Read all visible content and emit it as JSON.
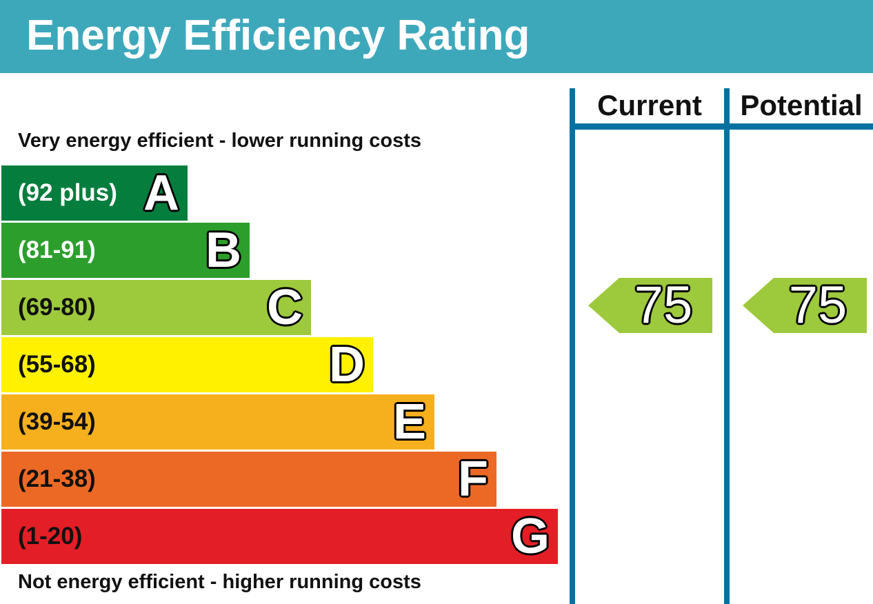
{
  "header": {
    "title": "Energy Efficiency Rating"
  },
  "captions": {
    "top": "Very energy efficient - lower running costs",
    "bottom": "Not energy efficient - higher running costs"
  },
  "columns": {
    "current": "Current",
    "potential": "Potential"
  },
  "chart_data": {
    "type": "bar",
    "title": "Energy Efficiency Rating",
    "bands": [
      {
        "letter": "A",
        "range": "(92 plus)",
        "min": 92,
        "max": 100,
        "color": "#047d3d",
        "text_color": "#ffffff"
      },
      {
        "letter": "B",
        "range": "(81-91)",
        "min": 81,
        "max": 91,
        "color": "#2c9e2c",
        "text_color": "#ffffff"
      },
      {
        "letter": "C",
        "range": "(69-80)",
        "min": 69,
        "max": 80,
        "color": "#9dc93c",
        "text_color": "#111111"
      },
      {
        "letter": "D",
        "range": "(55-68)",
        "min": 55,
        "max": 68,
        "color": "#fff100",
        "text_color": "#111111"
      },
      {
        "letter": "E",
        "range": "(39-54)",
        "min": 39,
        "max": 54,
        "color": "#f6b01e",
        "text_color": "#111111"
      },
      {
        "letter": "F",
        "range": "(21-38)",
        "min": 21,
        "max": 38,
        "color": "#ec6925",
        "text_color": "#111111"
      },
      {
        "letter": "G",
        "range": "(1-20)",
        "min": 1,
        "max": 20,
        "color": "#e41e26",
        "text_color": "#111111"
      }
    ],
    "current": {
      "value": "75",
      "band": "C",
      "color": "#9dc93c"
    },
    "potential": {
      "value": "75",
      "band": "C",
      "color": "#9dc93c"
    }
  }
}
